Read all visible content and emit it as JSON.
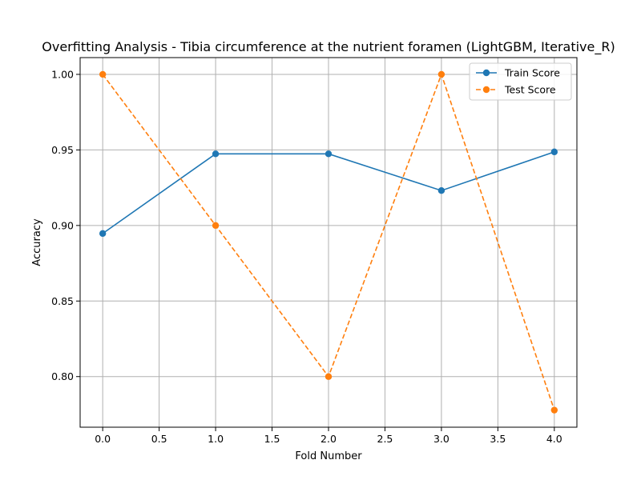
{
  "chart_data": {
    "type": "line",
    "title": "Overfitting Analysis - Tibia circumference at the nutrient foramen (LightGBM, Iterative_R)",
    "xlabel": "Fold Number",
    "ylabel": "Accuracy",
    "x": [
      0,
      1,
      2,
      3,
      4
    ],
    "xlim": [
      -0.2,
      4.2
    ],
    "ylim": [
      0.7665,
      1.0111
    ],
    "xticks": [
      0.0,
      0.5,
      1.0,
      1.5,
      2.0,
      2.5,
      3.0,
      3.5,
      4.0
    ],
    "xtick_labels": [
      "0.0",
      "0.5",
      "1.0",
      "1.5",
      "2.0",
      "2.5",
      "3.0",
      "3.5",
      "4.0"
    ],
    "yticks": [
      0.8,
      0.85,
      0.9,
      0.95,
      1.0
    ],
    "ytick_labels": [
      "0.80",
      "0.85",
      "0.90",
      "0.95",
      "1.00"
    ],
    "grid": true,
    "legend_position": "top-right",
    "series": [
      {
        "name": "Train Score",
        "values": [
          0.8947,
          0.9474,
          0.9474,
          0.9231,
          0.9487
        ],
        "color": "#1f77b4",
        "line_style": "solid",
        "marker": "circle"
      },
      {
        "name": "Test Score",
        "values": [
          1.0,
          0.9,
          0.8,
          1.0,
          0.7778
        ],
        "color": "#ff7f0e",
        "line_style": "dashed",
        "marker": "circle"
      }
    ]
  }
}
